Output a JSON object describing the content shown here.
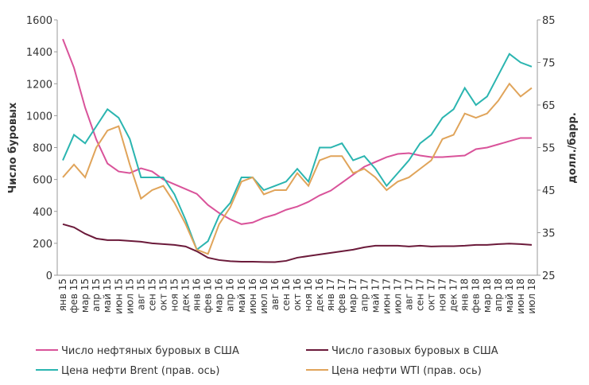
{
  "chart_data": {
    "type": "line",
    "y_label": "Число буровых",
    "y2_label": "долл./барр.",
    "categories": [
      "янв 15",
      "фев 15",
      "мар 15",
      "апр 15",
      "май 15",
      "июн 15",
      "июл 15",
      "авг 15",
      "сен 15",
      "окт 15",
      "ноя 15",
      "дек 15",
      "янв 16",
      "фев 16",
      "мар 16",
      "апр 16",
      "май 16",
      "июн 16",
      "июл 16",
      "авг 16",
      "сен 16",
      "окт 16",
      "ноя 16",
      "дек 16",
      "янв 17",
      "фев 17",
      "мар 17",
      "апр 17",
      "май 17",
      "июн 17",
      "июл 17",
      "авг 17",
      "сен 17",
      "окт 17",
      "ноя 17",
      "дек 17",
      "янв 18",
      "фев 18",
      "мар 18",
      "апр 18",
      "май 18",
      "июн 18",
      "июл 18"
    ],
    "ylim": [
      0,
      1600
    ],
    "yticks": [
      0,
      200,
      400,
      600,
      800,
      1000,
      1200,
      1400,
      1600
    ],
    "y2lim": [
      25,
      85
    ],
    "y2ticks": [
      25,
      35,
      45,
      55,
      65,
      75,
      85
    ],
    "series": [
      {
        "name": "Число нефтяных буровых в США",
        "color": "#d9539a",
        "values": [
          1480,
          1300,
          1050,
          850,
          700,
          650,
          640,
          670,
          650,
          600,
          570,
          540,
          510,
          440,
          390,
          350,
          320,
          330,
          360,
          380,
          410,
          430,
          460,
          500,
          530,
          580,
          630,
          680,
          710,
          740,
          760,
          765,
          750,
          740,
          740,
          745,
          750,
          790,
          800,
          820,
          840,
          860,
          860
        ]
      },
      {
        "name": "Число газовых буровых в США",
        "color": "#6b1a3a",
        "values": [
          320,
          300,
          260,
          230,
          220,
          220,
          215,
          210,
          200,
          195,
          190,
          180,
          150,
          110,
          95,
          88,
          85,
          85,
          83,
          82,
          90,
          110,
          120,
          130,
          140,
          150,
          160,
          175,
          185,
          185,
          185,
          180,
          185,
          180,
          182,
          182,
          185,
          190,
          190,
          195,
          198,
          195,
          190
        ]
      },
      {
        "name": "Цена нефти Brent (прав. ось)",
        "color": "#2bb5b0",
        "axis": "y2",
        "values": [
          52,
          58,
          56,
          60,
          64,
          62,
          57,
          48,
          48,
          48,
          44,
          38,
          31,
          33,
          39,
          42,
          48,
          48,
          45,
          46,
          47,
          50,
          47,
          55,
          55,
          56,
          52,
          53,
          50,
          46,
          49,
          52,
          56,
          58,
          62,
          64,
          69,
          65,
          67,
          72,
          77,
          75,
          74
        ]
      },
      {
        "name": "Цена нефти WTI (прав. ось)",
        "color": "#e0a45a",
        "axis": "y2",
        "values": [
          48,
          51,
          48,
          55,
          59,
          60,
          51,
          43,
          45,
          46,
          42,
          37,
          31,
          30,
          37,
          41,
          47,
          48,
          44,
          45,
          45,
          49,
          46,
          52,
          53,
          53,
          49,
          50,
          48,
          45,
          47,
          48,
          50,
          52,
          57,
          58,
          63,
          62,
          63,
          66,
          70,
          67,
          69
        ]
      }
    ]
  }
}
